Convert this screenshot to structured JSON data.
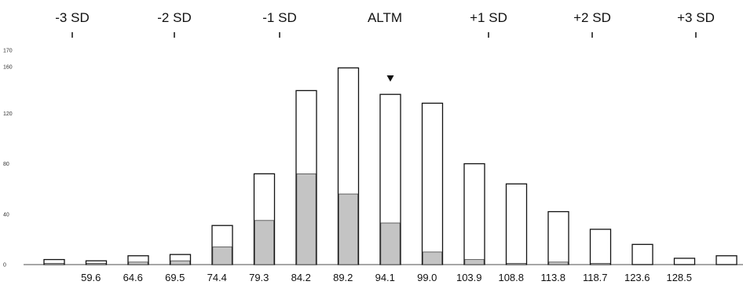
{
  "chart_data": {
    "type": "bar",
    "title": "",
    "xlabel": "",
    "ylabel": "",
    "ylim": [
      0,
      170
    ],
    "y_ticks": [
      "0",
      "40",
      "80",
      "120",
      "160",
      "170"
    ],
    "x_tick_labels": [
      "59.6",
      "64.6",
      "69.5",
      "74.4",
      "79.3",
      "84.2",
      "89.2",
      "94.1",
      "99.0",
      "103.9",
      "108.8",
      "113.8",
      "118.7",
      "123.6",
      "128.5"
    ],
    "sd_labels": [
      "-3 SD",
      "-2 SD",
      "-1 SD",
      "ALTM",
      "+1 SD",
      "+2 SD",
      "+3 SD"
    ],
    "marker_category": "94.1",
    "series": [
      {
        "values": [
          4,
          3,
          7,
          8,
          31,
          72,
          138,
          156,
          135,
          128,
          80,
          64,
          42,
          28,
          16,
          5,
          7
        ]
      },
      {
        "values": [
          1,
          1,
          2,
          3,
          14,
          35,
          72,
          56,
          33,
          10,
          4,
          1,
          2,
          1,
          0,
          0,
          0
        ]
      }
    ]
  }
}
